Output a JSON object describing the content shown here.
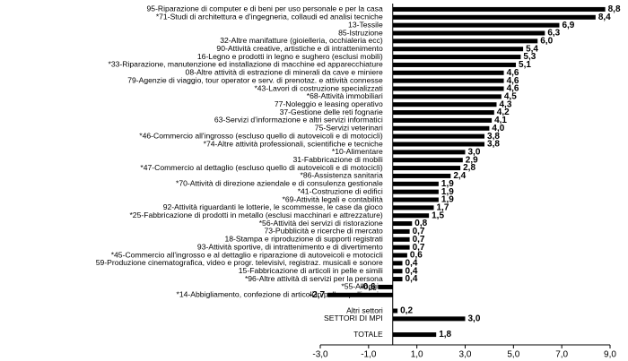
{
  "chart_data": {
    "type": "bar",
    "orientation": "horizontal",
    "color": "#000000",
    "categories": [
      "95-Riparazione di computer e di beni per uso personale e per la casa",
      "*71-Studi di architettura e d'ingegneria, collaudi ed analisi tecniche",
      "13-Tessile",
      "85-Istruzione",
      "32-Altre manifatture (gioielleria, occhialeria ecc)",
      "90-Attività creative, artistiche e di intrattenimento",
      "16-Legno e prodotti in legno e sughero (esclusi mobili)",
      "*33-Riparazione, manutenzione ed installazione di macchine ed apparecchiature",
      "08-Altre attività di estrazione di minerali da cave e miniere",
      "79-Agenzie di viaggio, tour operator e serv. di prenotaz. e attività connesse",
      "*43-Lavori di costruzione specializzati",
      "*68-Attività immobiliari",
      "77-Noleggio e leasing operativo",
      "37-Gestione delle reti fognarie",
      "63-Servizi d'informazione e altri servizi informatici",
      "75-Servizi veterinari",
      "*46-Commercio all'ingrosso (escluso quello di autoveicoli e di motocicli)",
      "*74-Altre attività professionali, scientifiche e tecniche",
      "*10-Alimentare",
      "31-Fabbricazione di mobili",
      "*47-Commercio al dettaglio (escluso quello di autoveicoli e di motocicli)",
      "*86-Assistenza sanitaria",
      "*70-Attività di direzione aziendale e di consulenza gestionale",
      "*41-Costruzione di edifici",
      "*69-Attività legali e contabilità",
      "92-Attività riguardanti le lotterie, le scommesse, le case da gioco",
      "*25-Fabbricazione di prodotti in metallo (esclusi macchinari e attrezzature)",
      "*56-Attività dei servizi di ristorazione",
      "73-Pubblicità e ricerche di mercato",
      "18-Stampa e riproduzione di supporti registrati",
      "93-Attività sportive, di intrattenimento e di divertimento",
      "*45-Commercio all'ingrosso e al dettaglio e riparazione di autoveicoli e motocicli",
      "59-Produzione cinematografica, video e progr. televisivi, registraz. musicali e sonore",
      "15-Fabbricazione di articoli in pelle e simili",
      "*96-Altre attività di servizi per la persona",
      "*55-Alloggio",
      "*14-Abbigliamento, confezione di articoli in pelle e pellicceria",
      null,
      "Altri settori",
      "SETTORI DI MPI",
      null,
      "TOTALE"
    ],
    "values": [
      8.8,
      8.4,
      6.9,
      6.3,
      6.0,
      5.4,
      5.3,
      5.1,
      4.6,
      4.6,
      4.6,
      4.5,
      4.3,
      4.2,
      4.1,
      4.0,
      3.8,
      3.8,
      3.0,
      2.9,
      2.8,
      2.4,
      1.9,
      1.9,
      1.9,
      1.7,
      1.5,
      0.8,
      0.7,
      0.7,
      0.7,
      0.6,
      0.4,
      0.4,
      0.4,
      -0.6,
      -2.7,
      null,
      0.2,
      3.0,
      null,
      1.8
    ],
    "value_labels": [
      "8,8",
      "8,4",
      "6,9",
      "6,3",
      "6,0",
      "5,4",
      "5,3",
      "5,1",
      "4,6",
      "4,6",
      "4,6",
      "4,5",
      "4,3",
      "4,2",
      "4,1",
      "4,0",
      "3,8",
      "3,8",
      "3,0",
      "2,9",
      "2,8",
      "2,4",
      "1,9",
      "1,9",
      "1,9",
      "1,7",
      "1,5",
      "0,8",
      "0,7",
      "0,7",
      "0,7",
      "0,6",
      "0,4",
      "0,4",
      "0,4",
      "-0,6",
      "-2,7",
      null,
      "0,2",
      "3,0",
      null,
      "1,8"
    ],
    "xlim": [
      -3,
      9
    ],
    "xticks": [
      {
        "value": -3,
        "label": "-3,0"
      },
      {
        "value": -1,
        "label": "-1,0"
      },
      {
        "value": 1,
        "label": "1,0"
      },
      {
        "value": 3,
        "label": "3,0"
      },
      {
        "value": 5,
        "label": "5,0"
      },
      {
        "value": 7,
        "label": "7,0"
      },
      {
        "value": 9,
        "label": "9,0"
      }
    ],
    "grid": false
  }
}
